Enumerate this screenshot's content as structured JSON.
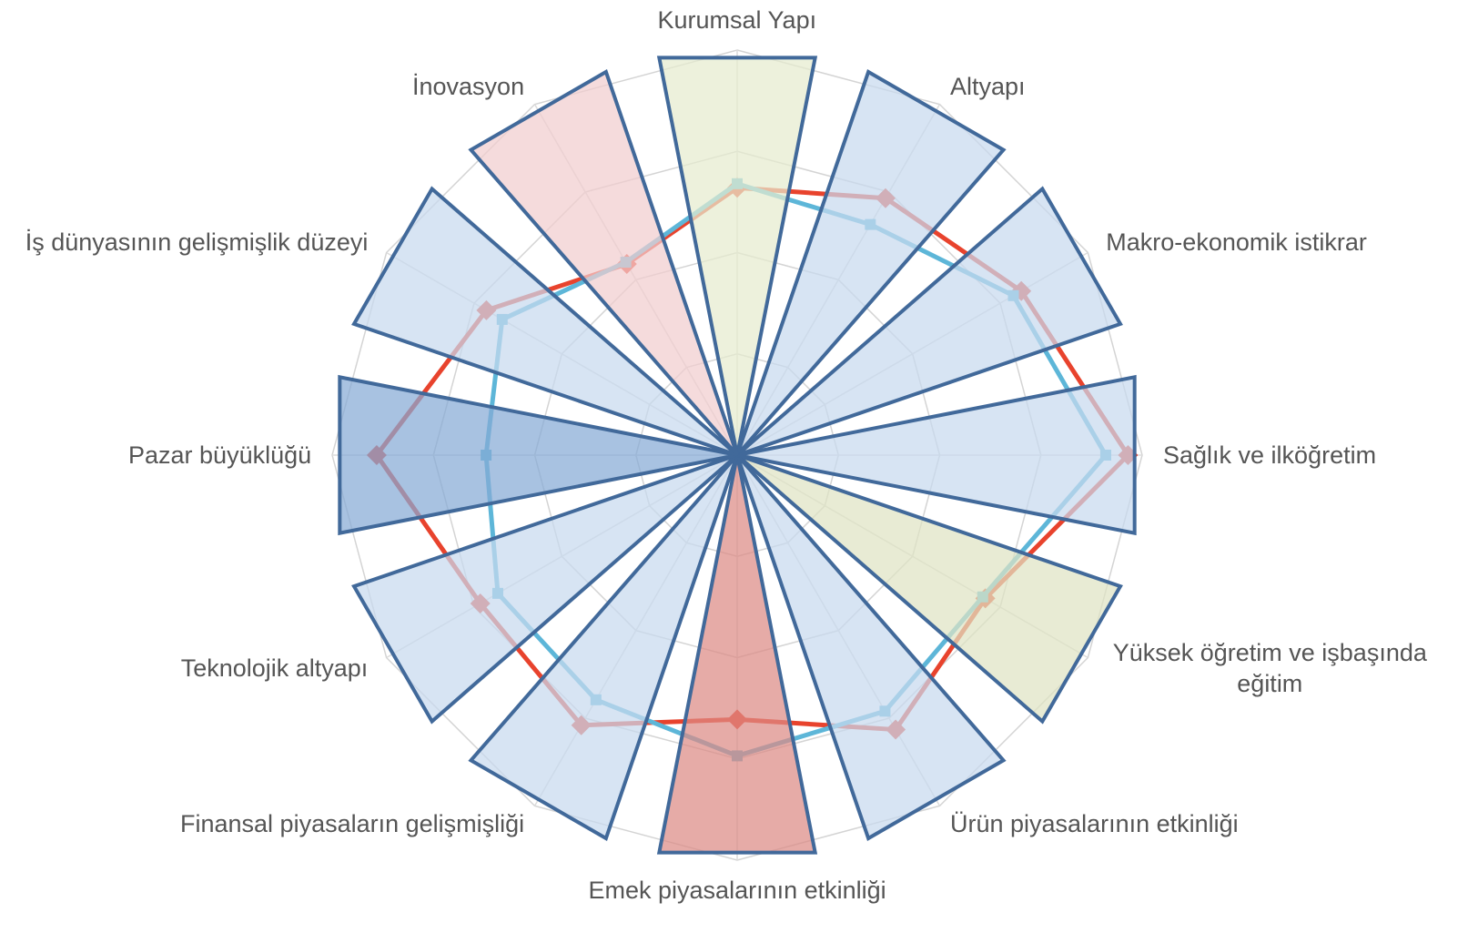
{
  "chart_data": {
    "type": "radar",
    "categories": [
      "Kurumsal Yapı",
      "Altyapı",
      "Makro-ekonomik istikrar",
      "Sağlık ve ilköğretim",
      "Yüksek öğretim ve işbaşında eğitim",
      "Ürün piyasalarının etkinliği",
      "Emek piyasalarının etkinliği",
      "Finansal piyasaların gelişmişliği",
      "Teknolojik altyapı",
      "Pazar büyüklüğü",
      "İş dünyasının gelişmişlik düzeyi",
      "İnovasyon"
    ],
    "ylim": [
      0,
      4
    ],
    "yticks": [
      0,
      1,
      2,
      3,
      4
    ],
    "grid": true,
    "series": [
      {
        "type": "bar",
        "edge_color": "#41699a",
        "colors": [
          "#e6eccf",
          "#c8d9ee",
          "#c8d9ee",
          "#c8d9ee",
          "#dfe3c4",
          "#c8d9ee",
          "#dc8a85",
          "#c8d9ee",
          "#c8d9ee",
          "#86aad6",
          "#c8d9ee",
          "#f1cdcf"
        ],
        "values": [
          4,
          4,
          4,
          4,
          4,
          4,
          4,
          4,
          4,
          4,
          4,
          4
        ]
      },
      {
        "type": "line",
        "color": "#e8432d",
        "marker": "diamond",
        "values": [
          2.64,
          2.93,
          3.24,
          3.86,
          2.83,
          3.13,
          2.61,
          3.08,
          2.93,
          3.56,
          2.86,
          2.18
        ]
      },
      {
        "type": "line",
        "color": "#5db6d8",
        "marker": "square",
        "values": [
          2.68,
          2.63,
          3.15,
          3.64,
          2.8,
          2.92,
          2.97,
          2.79,
          2.73,
          2.48,
          2.68,
          2.2
        ]
      }
    ]
  }
}
